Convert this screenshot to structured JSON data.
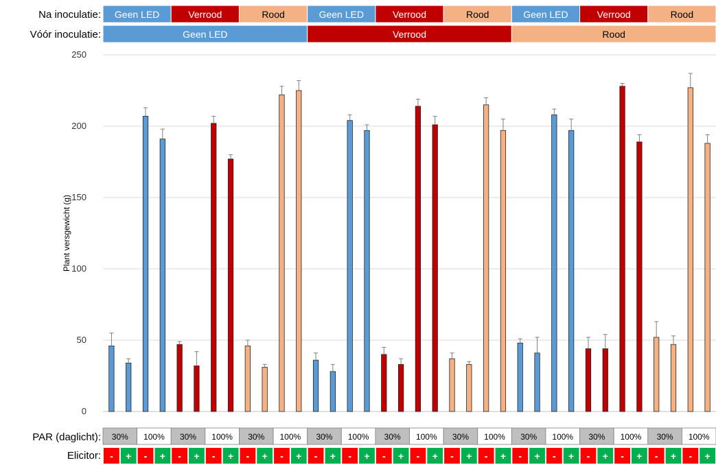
{
  "chart_data": {
    "type": "bar",
    "title": "",
    "ylabel": "Plant versgewicht (g)",
    "ylim": [
      0,
      250
    ],
    "yticks": [
      0,
      50,
      100,
      150,
      200,
      250
    ],
    "grid": "horizontal",
    "row_labels": {
      "na": "Na inoculatie:",
      "voor": "Vóór inoculatie:",
      "par": "PAR (daglicht):",
      "elicitor": "Elicitor:"
    },
    "voor_groups": [
      "Geen LED",
      "Verrood",
      "Rood"
    ],
    "na_groups": [
      "Geen LED",
      "Verrood",
      "Rood",
      "Geen LED",
      "Verrood",
      "Rood",
      "Geen LED",
      "Verrood",
      "Rood"
    ],
    "par_labels": [
      "30%",
      "100%",
      "30%",
      "100%",
      "30%",
      "100%",
      "30%",
      "100%",
      "30%",
      "100%",
      "30%",
      "100%",
      "30%",
      "100%",
      "30%",
      "100%",
      "30%",
      "100%"
    ],
    "elicitor_labels": [
      "-",
      "+",
      "-",
      "+",
      "-",
      "+",
      "-",
      "+",
      "-",
      "+",
      "-",
      "+",
      "-",
      "+",
      "-",
      "+",
      "-",
      "+",
      "-",
      "+",
      "-",
      "+",
      "-",
      "+",
      "-",
      "+",
      "-",
      "+",
      "-",
      "+",
      "-",
      "+",
      "-",
      "+",
      "-",
      "+"
    ],
    "values": [
      46,
      34,
      207,
      191,
      47,
      32,
      202,
      177,
      46,
      31,
      222,
      225,
      36,
      28,
      204,
      197,
      40,
      33,
      214,
      201,
      37,
      33,
      215,
      197,
      48,
      41,
      208,
      197,
      44,
      44,
      228,
      189,
      52,
      47,
      227,
      188
    ],
    "errors": [
      9,
      3,
      6,
      7,
      2,
      10,
      5,
      3,
      4,
      2,
      6,
      7,
      5,
      5,
      4,
      4,
      5,
      4,
      5,
      6,
      4,
      2,
      5,
      8,
      3,
      11,
      4,
      8,
      8,
      10,
      2,
      5,
      11,
      6,
      10,
      6
    ],
    "led_colors": {
      "Geen LED": "#5B9BD5",
      "Verrood": "#C00000",
      "Rood": "#F4B183"
    },
    "elicitor_colors": {
      "-": "#FF0000",
      "+": "#00B050"
    },
    "par_color_30": "#BFBFBF"
  }
}
